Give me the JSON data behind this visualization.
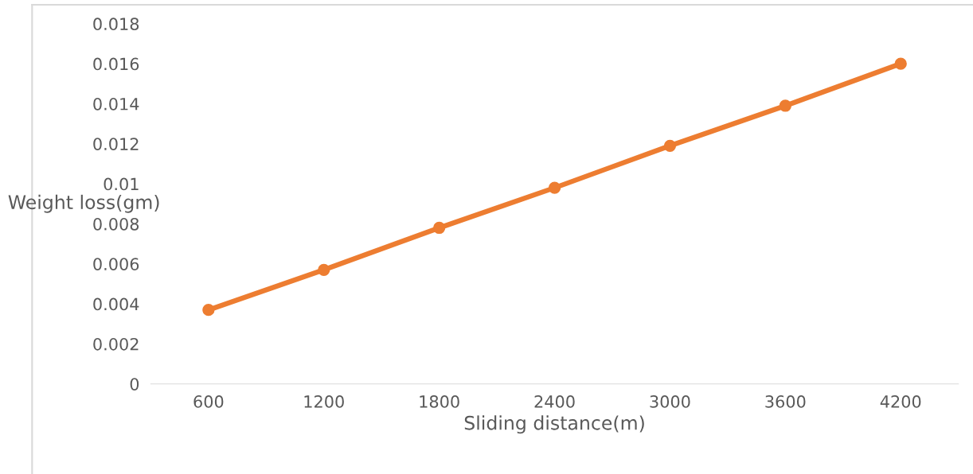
{
  "chart_data": {
    "type": "line",
    "xlabel": "Sliding distance(m)",
    "ylabel": "Weight loss(gm)",
    "categories": [
      "600",
      "1200",
      "1800",
      "2400",
      "3000",
      "3600",
      "4200"
    ],
    "series": [
      {
        "color": "#ed7d31",
        "values": [
          0.0037,
          0.0057,
          0.0078,
          0.0098,
          0.0119,
          0.0139,
          0.016
        ]
      }
    ],
    "ylim": [
      0,
      0.018
    ],
    "yticks": [
      0,
      0.002,
      0.004,
      0.006,
      0.008,
      {
        "value": 0.01,
        "label": "0.01"
      },
      0.012,
      0.014,
      0.016,
      0.018
    ],
    "grid": false,
    "legend": false,
    "marker": "circle",
    "line_style": "solid"
  }
}
